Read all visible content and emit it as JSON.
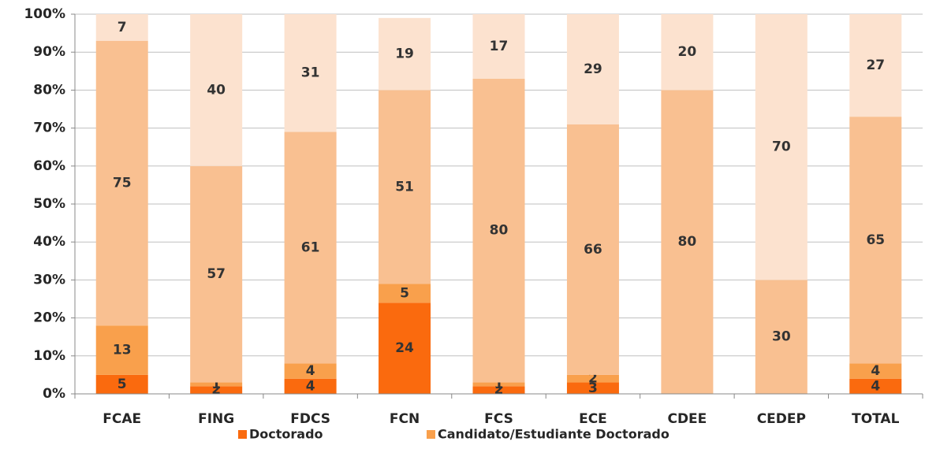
{
  "chart_data": {
    "type": "stacked_bar_100",
    "categories": [
      "FCAE",
      "FING",
      "FDCS",
      "FCN",
      "FCS",
      "ECE",
      "CDEE",
      "CEDEP",
      "TOTAL"
    ],
    "series": [
      {
        "name": "Doctorado",
        "color": "#fa6a0e",
        "values": [
          5,
          2,
          4,
          24,
          2,
          3,
          0,
          0,
          4
        ]
      },
      {
        "name": "Candidato/Estudiante Doctorado",
        "color": "#f9a04c",
        "values": [
          13,
          1,
          4,
          5,
          1,
          2,
          0,
          0,
          4
        ]
      },
      {
        "color": "#f9c091",
        "values": [
          75,
          57,
          61,
          51,
          80,
          66,
          80,
          30,
          65
        ]
      },
      {
        "color": "#fce2cf",
        "values": [
          7,
          40,
          31,
          19,
          17,
          29,
          20,
          70,
          27
        ]
      }
    ],
    "ylim": [
      0,
      100
    ],
    "yticks": [
      {
        "value": 0,
        "label": "0%"
      },
      {
        "value": 10,
        "label": "10%"
      },
      {
        "value": 20,
        "label": "20%"
      },
      {
        "value": 30,
        "label": "30%"
      },
      {
        "value": 40,
        "label": "40%"
      },
      {
        "value": 50,
        "label": "50%"
      },
      {
        "value": 60,
        "label": "60%"
      },
      {
        "value": 70,
        "label": "70%"
      },
      {
        "value": 80,
        "label": "80%"
      },
      {
        "value": 90,
        "label": "90%"
      },
      {
        "value": 100,
        "label": "100%"
      }
    ],
    "grid": true,
    "legend": "bottom"
  }
}
